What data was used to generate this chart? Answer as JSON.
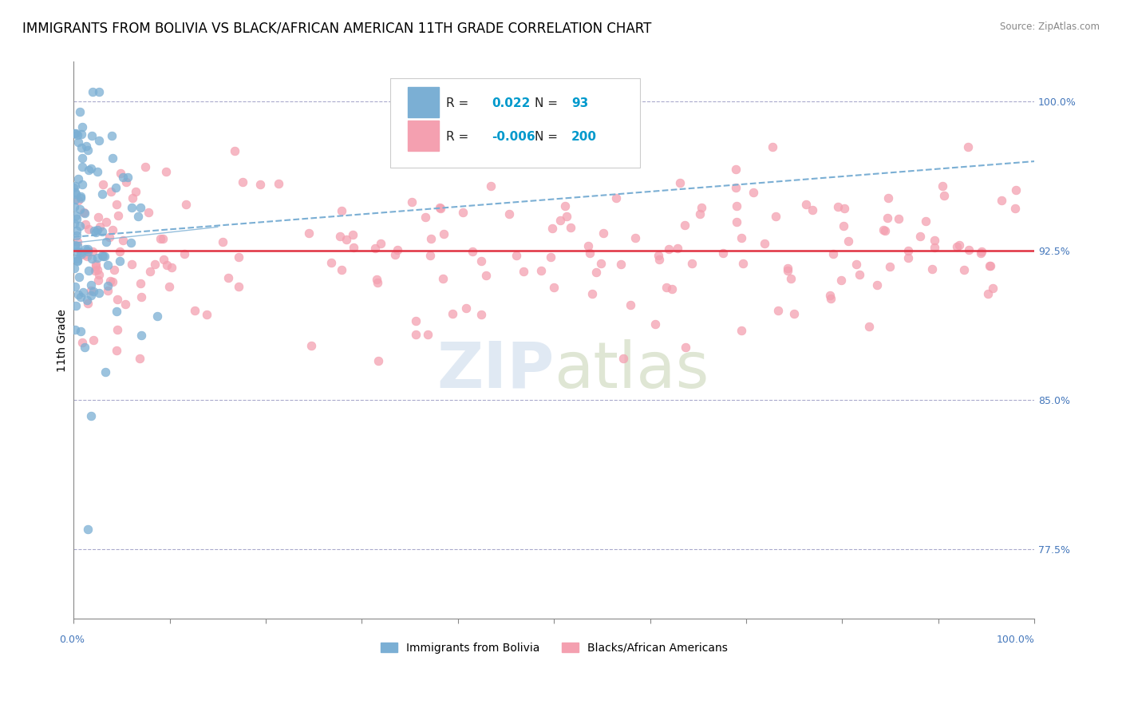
{
  "title": "IMMIGRANTS FROM BOLIVIA VS BLACK/AFRICAN AMERICAN 11TH GRADE CORRELATION CHART",
  "source": "Source: ZipAtlas.com",
  "ylabel": "11th Grade",
  "y_ticks": [
    77.5,
    85.0,
    92.5,
    100.0
  ],
  "y_tick_labels": [
    "77.5%",
    "85.0%",
    "92.5%",
    "100.0%"
  ],
  "xlim": [
    0.0,
    100.0
  ],
  "ylim": [
    74.0,
    102.0
  ],
  "blue_R": 0.022,
  "blue_N": 93,
  "pink_R": -0.006,
  "pink_N": 200,
  "blue_color": "#7bafd4",
  "pink_color": "#f4a0b0",
  "blue_trend_color": "#7bafd4",
  "pink_trend_color": "#e03040",
  "blue_label": "Immigrants from Bolivia",
  "pink_label": "Blacks/African Americans",
  "legend_R_color": "#0099cc",
  "title_fontsize": 12,
  "axis_label_fontsize": 10,
  "tick_fontsize": 9,
  "background_color": "#ffffff",
  "blue_trend_start_y": 93.2,
  "blue_trend_end_y": 97.0,
  "pink_trend_y": 92.5,
  "dashed_line_y": 100.0,
  "marker_size": 60
}
